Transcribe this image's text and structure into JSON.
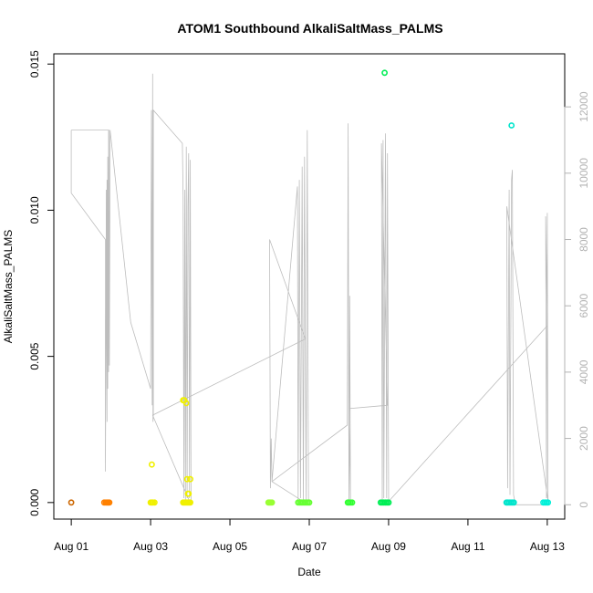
{
  "chart_data": {
    "type": "scatter",
    "title": "ATOM1 Southbound AlkaliSaltMass_PALMS",
    "xlabel": "Date",
    "ylabel": "AlkaliSaltMass_PALMS",
    "x_unit": "days (Aug)",
    "xlim": [
      1.0,
      13.3
    ],
    "ylim": [
      0.0,
      0.015
    ],
    "y2lim": [
      0,
      13000
    ],
    "x_ticks": [
      {
        "value": 1,
        "label": "Aug 01"
      },
      {
        "value": 3,
        "label": "Aug 03"
      },
      {
        "value": 5,
        "label": "Aug 05"
      },
      {
        "value": 7,
        "label": "Aug 07"
      },
      {
        "value": 9,
        "label": "Aug 09"
      },
      {
        "value": 11,
        "label": "Aug 11"
      },
      {
        "value": 13,
        "label": "Aug 13"
      }
    ],
    "y_ticks": [
      {
        "value": 0.0,
        "label": "0.000"
      },
      {
        "value": 0.005,
        "label": "0.005"
      },
      {
        "value": 0.01,
        "label": "0.010"
      },
      {
        "value": 0.015,
        "label": "0.015"
      }
    ],
    "y2_ticks": [
      {
        "value": 0,
        "label": "0"
      },
      {
        "value": 2000,
        "label": "2000"
      },
      {
        "value": 4000,
        "label": "4000"
      },
      {
        "value": 6000,
        "label": "6000"
      },
      {
        "value": 8000,
        "label": "8000"
      },
      {
        "value": 10000,
        "label": "10000"
      },
      {
        "value": 12000,
        "label": "12000"
      }
    ],
    "grid": false,
    "series": [
      {
        "color": "#cc6600",
        "points": [
          [
            1.0,
            0.0
          ]
        ]
      },
      {
        "color": "#ff8000",
        "points": [
          [
            1.83,
            0.0
          ],
          [
            1.87,
            0.0
          ],
          [
            1.9,
            0.0
          ],
          [
            1.93,
            0.0
          ],
          [
            1.96,
            0.0
          ]
        ]
      },
      {
        "color": "#f0f000",
        "points": [
          [
            3.0,
            0.0
          ],
          [
            3.03,
            0.0
          ],
          [
            3.06,
            0.0
          ],
          [
            3.1,
            0.0
          ],
          [
            3.03,
            0.0013
          ],
          [
            3.82,
            0.0
          ],
          [
            3.85,
            0.0
          ],
          [
            3.88,
            0.0
          ],
          [
            3.91,
            0.0
          ],
          [
            3.94,
            0.0
          ],
          [
            3.97,
            0.0
          ],
          [
            4.0,
            0.0
          ],
          [
            3.82,
            0.0035
          ],
          [
            3.85,
            0.0035
          ],
          [
            3.9,
            0.0034
          ],
          [
            3.92,
            0.0008
          ],
          [
            4.0,
            0.0008
          ],
          [
            3.96,
            0.0003
          ],
          [
            3.94,
            0.0003
          ]
        ]
      },
      {
        "color": "#99ff33",
        "points": [
          [
            5.97,
            0.0
          ],
          [
            6.0,
            0.0
          ],
          [
            6.03,
            0.0
          ],
          [
            6.06,
            0.0
          ]
        ]
      },
      {
        "color": "#66ff33",
        "points": [
          [
            6.72,
            0.0
          ],
          [
            6.76,
            0.0
          ],
          [
            6.8,
            0.0
          ],
          [
            6.84,
            0.0
          ],
          [
            6.88,
            0.0
          ],
          [
            6.92,
            0.0
          ],
          [
            6.96,
            0.0
          ],
          [
            7.0,
            0.0
          ]
        ]
      },
      {
        "color": "#33ff33",
        "points": [
          [
            7.97,
            0.0
          ],
          [
            8.0,
            0.0
          ],
          [
            8.04,
            0.0
          ],
          [
            8.08,
            0.0
          ]
        ]
      },
      {
        "color": "#00ee55",
        "points": [
          [
            8.8,
            0.0
          ],
          [
            8.84,
            0.0
          ],
          [
            8.88,
            0.0
          ],
          [
            8.92,
            0.0
          ],
          [
            8.96,
            0.0
          ],
          [
            9.0,
            0.0
          ],
          [
            8.9,
            0.0147
          ]
        ]
      },
      {
        "color": "#00e5cc",
        "points": [
          [
            11.97,
            0.0
          ],
          [
            12.0,
            0.0
          ],
          [
            12.04,
            0.0
          ],
          [
            12.08,
            0.0
          ],
          [
            12.12,
            0.0
          ],
          [
            12.16,
            0.0
          ],
          [
            12.1,
            0.0129
          ]
        ]
      },
      {
        "color": "#00f0d8",
        "points": [
          [
            12.9,
            0.0
          ],
          [
            12.94,
            0.0
          ],
          [
            12.98,
            0.0
          ],
          [
            13.02,
            0.0
          ]
        ]
      }
    ],
    "secondary_trace": {
      "color": "#bdbdbd",
      "axis": "right",
      "points": [
        [
          1.0,
          11300
        ],
        [
          1.0,
          9400
        ],
        [
          1.86,
          8000
        ],
        [
          1.86,
          1000
        ],
        [
          1.88,
          6000
        ],
        [
          1.88,
          9500
        ],
        [
          1.9,
          2500
        ],
        [
          1.9,
          9800
        ],
        [
          1.92,
          3500
        ],
        [
          1.92,
          10500
        ],
        [
          1.94,
          4000
        ],
        [
          1.94,
          11300
        ],
        [
          1.0,
          11300
        ],
        [
          1.95,
          11300
        ],
        [
          1.96,
          4200
        ],
        [
          1.98,
          11300
        ],
        [
          2.5,
          5500
        ],
        [
          3.0,
          3500
        ],
        [
          3.02,
          11900
        ],
        [
          3.04,
          3000
        ],
        [
          3.05,
          13000
        ],
        [
          3.06,
          2500
        ],
        [
          3.07,
          2700
        ],
        [
          3.07,
          11900
        ],
        [
          3.8,
          10900
        ],
        [
          3.82,
          9300
        ],
        [
          3.84,
          200
        ],
        [
          3.86,
          9500
        ],
        [
          3.88,
          100
        ],
        [
          3.9,
          10800
        ],
        [
          3.92,
          200
        ],
        [
          3.94,
          9000
        ],
        [
          3.96,
          10600
        ],
        [
          3.98,
          200
        ],
        [
          4.0,
          10400
        ],
        [
          4.02,
          0
        ],
        [
          3.05,
          2700
        ],
        [
          6.9,
          5000
        ],
        [
          6.0,
          8000
        ],
        [
          6.02,
          500
        ],
        [
          6.04,
          2000
        ],
        [
          6.06,
          700
        ],
        [
          6.7,
          9600
        ],
        [
          6.72,
          100
        ],
        [
          6.75,
          9800
        ],
        [
          6.78,
          200
        ],
        [
          6.82,
          10200
        ],
        [
          6.85,
          100
        ],
        [
          6.88,
          10500
        ],
        [
          6.92,
          100
        ],
        [
          6.95,
          11300
        ],
        [
          6.98,
          0
        ],
        [
          6.06,
          700
        ],
        [
          7.96,
          2400
        ],
        [
          7.98,
          11500
        ],
        [
          8.0,
          100
        ],
        [
          8.02,
          6300
        ],
        [
          8.04,
          0
        ],
        [
          8.0,
          2900
        ],
        [
          8.97,
          3000
        ],
        [
          8.82,
          10900
        ],
        [
          8.84,
          100
        ],
        [
          8.86,
          11000
        ],
        [
          8.88,
          200
        ],
        [
          8.92,
          11200
        ],
        [
          8.95,
          200
        ],
        [
          8.97,
          10600
        ],
        [
          9.0,
          0
        ],
        [
          9.0,
          100
        ],
        [
          13.0,
          5400
        ],
        [
          12.96,
          8700
        ],
        [
          12.98,
          200
        ],
        [
          13.0,
          8800
        ],
        [
          13.02,
          100
        ],
        [
          11.98,
          9000
        ],
        [
          12.0,
          500
        ],
        [
          12.04,
          9500
        ],
        [
          12.06,
          300
        ],
        [
          12.1,
          9800
        ],
        [
          12.12,
          10100
        ],
        [
          12.15,
          300
        ],
        [
          12.2,
          0
        ],
        [
          12.9,
          0
        ]
      ]
    }
  }
}
